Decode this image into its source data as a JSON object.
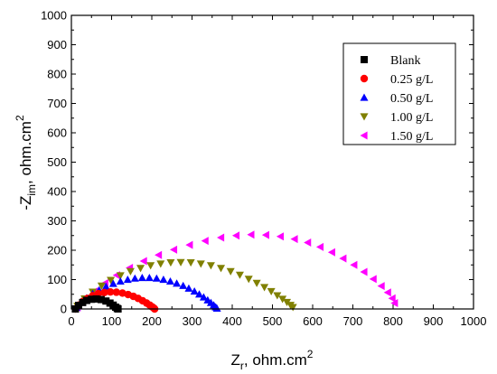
{
  "chart_data": {
    "type": "scatter",
    "title": "",
    "xlabel": "Z",
    "xlabel_sub": "r",
    "xlabel_units": ", ohm.cm",
    "xlabel_sup": "2",
    "ylabel": "-Z",
    "ylabel_sub": "im",
    "ylabel_units": ", ohm.cm",
    "ylabel_sup": "2",
    "xlim": [
      0,
      1000
    ],
    "ylim": [
      0,
      1000
    ],
    "x_ticks": [
      "0",
      "100",
      "200",
      "300",
      "400",
      "500",
      "600",
      "700",
      "800",
      "900",
      "1000"
    ],
    "y_ticks": [
      "0",
      "100",
      "200",
      "300",
      "400",
      "500",
      "600",
      "700",
      "800",
      "900",
      "1000"
    ],
    "grid": false,
    "legend_position": "top-right",
    "series": [
      {
        "name": "Blank",
        "marker": "square",
        "color": "#000000",
        "x": [
          10,
          18,
          28,
          38,
          50,
          62,
          74,
          86,
          96,
          104,
          110,
          114,
          116
        ],
        "y": [
          0,
          12,
          22,
          29,
          33,
          34,
          32,
          27,
          20,
          13,
          6,
          2,
          0
        ]
      },
      {
        "name": "0.25 g/L",
        "marker": "circle",
        "color": "#ff0000",
        "x": [
          10,
          18,
          28,
          40,
          53,
          67,
          82,
          97,
          112,
          127,
          141,
          154,
          166,
          177,
          187,
          195,
          201,
          205,
          207
        ],
        "y": [
          0,
          13,
          25,
          36,
          45,
          52,
          56,
          58,
          57,
          54,
          49,
          43,
          36,
          28,
          20,
          13,
          7,
          3,
          0
        ]
      },
      {
        "name": "0.50 g/L",
        "marker": "triangle-up",
        "color": "#0000ff",
        "x": [
          12,
          24,
          38,
          53,
          69,
          86,
          104,
          122,
          140,
          158,
          176,
          194,
          212,
          229,
          246,
          262,
          278,
          292,
          306,
          318,
          329,
          339,
          347,
          354,
          359,
          362
        ],
        "y": [
          5,
          22,
          37,
          51,
          64,
          76,
          86,
          94,
          100,
          104,
          106,
          106,
          104,
          100,
          94,
          87,
          79,
          70,
          60,
          50,
          40,
          30,
          21,
          13,
          6,
          2
        ]
      },
      {
        "name": "1.00 g/L",
        "marker": "triangle-down",
        "color": "#808000",
        "x": [
          15,
          33,
          53,
          75,
          98,
          122,
          147,
          172,
          197,
          222,
          247,
          272,
          297,
          322,
          347,
          372,
          396,
          419,
          441,
          461,
          480,
          497,
          512,
          525,
          536,
          545,
          551
        ],
        "y": [
          10,
          35,
          58,
          79,
          98,
          114,
          128,
          139,
          148,
          154,
          158,
          159,
          158,
          154,
          148,
          139,
          128,
          116,
          102,
          88,
          74,
          60,
          46,
          34,
          23,
          13,
          6
        ]
      },
      {
        "name": "1.50 g/L",
        "marker": "triangle-left",
        "color": "#ff00ff",
        "x": [
          15,
          35,
          58,
          84,
          113,
          145,
          180,
          217,
          255,
          294,
          333,
          372,
          410,
          447,
          484,
          520,
          555,
          588,
          619,
          648,
          676,
          703,
          728,
          751,
          771,
          787,
          798,
          804
        ],
        "y": [
          5,
          32,
          60,
          88,
          115,
          140,
          163,
          184,
          202,
          218,
          232,
          243,
          250,
          253,
          252,
          247,
          238,
          226,
          211,
          193,
          172,
          150,
          126,
          102,
          78,
          56,
          36,
          20
        ]
      }
    ]
  }
}
